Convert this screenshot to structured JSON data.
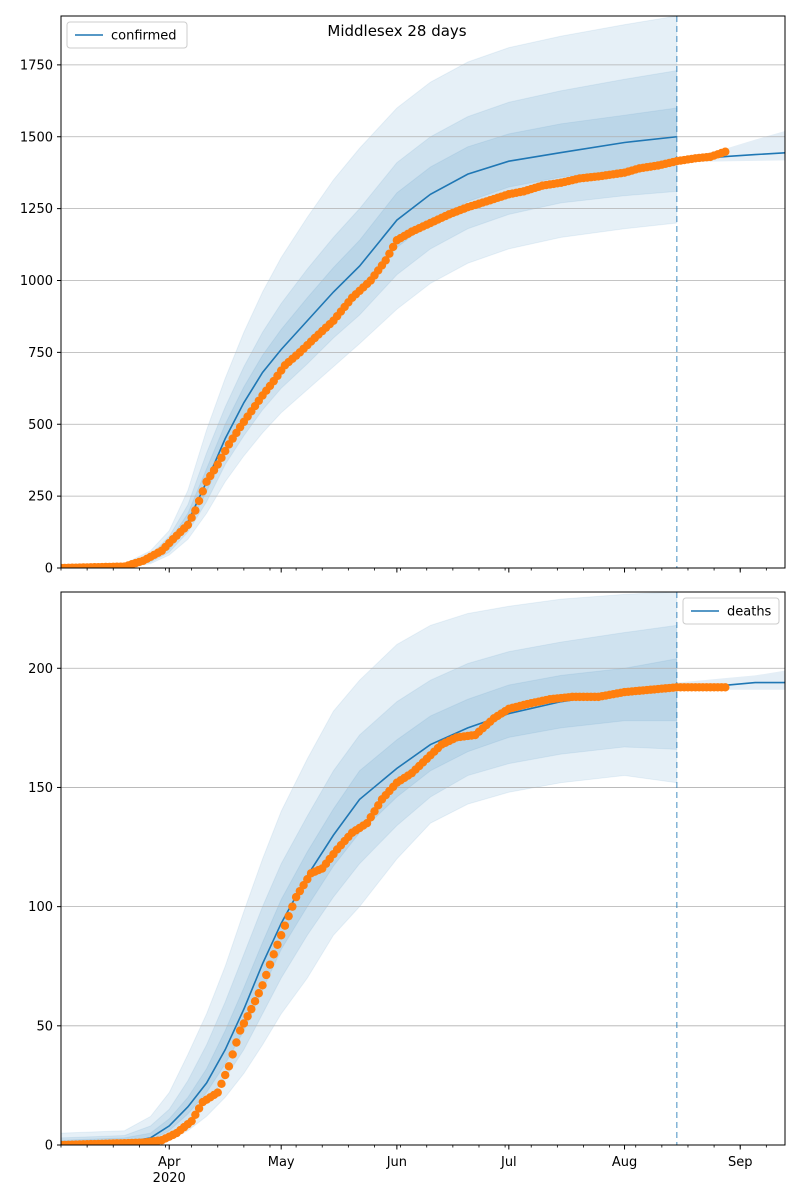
{
  "figure": {
    "title": "Middlesex 28 days"
  },
  "chart_data": [
    {
      "type": "line",
      "legend": "confirmed",
      "legend_position": "top-left",
      "ylim": [
        0,
        1920
      ],
      "yticks": [
        0,
        250,
        500,
        750,
        1000,
        1250,
        1500,
        1750
      ],
      "grid": "horizontal",
      "x_start": "2020-03-03",
      "x_end": "2020-09-13",
      "forecast_start": "2020-08-15",
      "x_major_ticks": [
        {
          "date": "2020-04-01",
          "label": "Apr",
          "sublabel": "2020"
        },
        {
          "date": "2020-05-01",
          "label": "May",
          "sublabel": ""
        },
        {
          "date": "2020-06-01",
          "label": "Jun",
          "sublabel": ""
        },
        {
          "date": "2020-07-01",
          "label": "Jul",
          "sublabel": ""
        },
        {
          "date": "2020-08-01",
          "label": "Aug",
          "sublabel": ""
        },
        {
          "date": "2020-09-01",
          "label": "Sep",
          "sublabel": ""
        }
      ],
      "model": {
        "dates": [
          "2020-03-03",
          "2020-03-20",
          "2020-03-27",
          "2020-04-01",
          "2020-04-06",
          "2020-04-11",
          "2020-04-16",
          "2020-04-21",
          "2020-04-26",
          "2020-05-01",
          "2020-05-08",
          "2020-05-15",
          "2020-05-22",
          "2020-06-01",
          "2020-06-10",
          "2020-06-20",
          "2020-07-01",
          "2020-07-15",
          "2020-08-01",
          "2020-08-15"
        ],
        "values": [
          0,
          5,
          30,
          75,
          160,
          300,
          450,
          575,
          680,
          760,
          860,
          960,
          1050,
          1210,
          1300,
          1370,
          1415,
          1445,
          1480,
          1500
        ],
        "bands": [
          {
            "lower": [
              0,
              0,
              15,
              45,
              100,
              190,
              300,
              390,
              470,
              540,
              620,
              700,
              780,
              900,
              990,
              1060,
              1110,
              1150,
              1180,
              1200
            ],
            "upper": [
              5,
              15,
              60,
              130,
              270,
              480,
              660,
              820,
              960,
              1080,
              1220,
              1350,
              1460,
              1600,
              1690,
              1760,
              1810,
              1850,
              1890,
              1920
            ]
          },
          {
            "lower": [
              0,
              2,
              20,
              55,
              125,
              230,
              360,
              460,
              550,
              625,
              710,
              800,
              880,
              1020,
              1110,
              1180,
              1230,
              1270,
              1295,
              1310
            ],
            "upper": [
              3,
              10,
              45,
              110,
              220,
              400,
              560,
              700,
              820,
              920,
              1040,
              1150,
              1250,
              1410,
              1500,
              1570,
              1620,
              1660,
              1700,
              1730
            ]
          },
          {
            "lower": [
              0,
              3,
              25,
              65,
              140,
              265,
              405,
              515,
              610,
              690,
              780,
              875,
              960,
              1115,
              1205,
              1275,
              1325,
              1360,
              1385,
              1400
            ],
            "upper": [
              2,
              8,
              38,
              92,
              190,
              345,
              500,
              630,
              740,
              830,
              940,
              1045,
              1140,
              1305,
              1395,
              1465,
              1510,
              1545,
              1575,
              1600
            ]
          }
        ]
      },
      "tail": {
        "dates": [
          "2020-08-15",
          "2020-08-22",
          "2020-08-29",
          "2020-09-05",
          "2020-09-13"
        ],
        "values": [
          1420,
          1425,
          1432,
          1438,
          1444
        ],
        "lower": [
          1412,
          1413,
          1415,
          1416,
          1418
        ],
        "upper": [
          1428,
          1440,
          1462,
          1490,
          1520
        ]
      },
      "observed": {
        "dates": [
          "2020-03-03",
          "2020-03-20",
          "2020-03-25",
          "2020-03-30",
          "2020-04-02",
          "2020-04-06",
          "2020-04-08",
          "2020-04-11",
          "2020-04-14",
          "2020-04-17",
          "2020-04-20",
          "2020-04-23",
          "2020-04-26",
          "2020-04-29",
          "2020-05-02",
          "2020-05-06",
          "2020-05-10",
          "2020-05-15",
          "2020-05-20",
          "2020-05-25",
          "2020-05-29",
          "2020-06-01",
          "2020-06-05",
          "2020-06-10",
          "2020-06-15",
          "2020-06-20",
          "2020-06-25",
          "2020-07-01",
          "2020-07-05",
          "2020-07-10",
          "2020-07-15",
          "2020-07-20",
          "2020-07-25",
          "2020-08-01",
          "2020-08-05",
          "2020-08-10",
          "2020-08-15",
          "2020-08-20",
          "2020-08-24",
          "2020-08-28"
        ],
        "values": [
          0,
          5,
          25,
          60,
          100,
          150,
          200,
          300,
          360,
          430,
          490,
          545,
          600,
          650,
          705,
          750,
          800,
          860,
          940,
          1000,
          1070,
          1140,
          1170,
          1200,
          1230,
          1255,
          1275,
          1300,
          1310,
          1330,
          1340,
          1355,
          1362,
          1375,
          1390,
          1400,
          1415,
          1425,
          1430,
          1448
        ]
      }
    },
    {
      "type": "line",
      "legend": "deaths",
      "legend_position": "top-right",
      "ylim": [
        0,
        232
      ],
      "yticks": [
        0,
        50,
        100,
        150,
        200
      ],
      "grid": "horizontal",
      "x_start": "2020-03-03",
      "x_end": "2020-09-13",
      "forecast_start": "2020-08-15",
      "x_major_ticks": [
        {
          "date": "2020-04-01",
          "label": "Apr",
          "sublabel": "2020"
        },
        {
          "date": "2020-05-01",
          "label": "May",
          "sublabel": ""
        },
        {
          "date": "2020-06-01",
          "label": "Jun",
          "sublabel": ""
        },
        {
          "date": "2020-07-01",
          "label": "Jul",
          "sublabel": ""
        },
        {
          "date": "2020-08-01",
          "label": "Aug",
          "sublabel": ""
        },
        {
          "date": "2020-09-01",
          "label": "Sep",
          "sublabel": ""
        }
      ],
      "model": {
        "dates": [
          "2020-03-03",
          "2020-03-20",
          "2020-03-27",
          "2020-04-01",
          "2020-04-06",
          "2020-04-11",
          "2020-04-16",
          "2020-04-21",
          "2020-04-26",
          "2020-05-01",
          "2020-05-08",
          "2020-05-15",
          "2020-05-22",
          "2020-06-01",
          "2020-06-10",
          "2020-06-20",
          "2020-07-01",
          "2020-07-15",
          "2020-08-01",
          "2020-08-15"
        ],
        "values": [
          0,
          1,
          3,
          8,
          16,
          26,
          40,
          57,
          76,
          93,
          113,
          130,
          145,
          158,
          168,
          175,
          181,
          186,
          190,
          192
        ],
        "bands": [
          {
            "lower": [
              0,
              0,
              0,
              2,
              6,
              12,
              20,
              30,
              42,
              55,
              70,
              88,
              100,
              120,
              135,
              143,
              148,
              152,
              155,
              152
            ],
            "upper": [
              5,
              6,
              12,
              22,
              38,
              55,
              75,
              98,
              120,
              140,
              162,
              182,
              195,
              210,
              218,
              223,
              226,
              229,
              231,
              232
            ]
          },
          {
            "lower": [
              0,
              0,
              1,
              4,
              10,
              18,
              28,
              40,
              55,
              70,
              88,
              104,
              118,
              134,
              146,
              155,
              160,
              164,
              167,
              166
            ],
            "upper": [
              3,
              4,
              8,
              15,
              27,
              42,
              60,
              80,
              100,
              118,
              138,
              157,
              172,
              186,
              195,
              202,
              207,
              211,
              215,
              218
            ]
          },
          {
            "lower": [
              0,
              0,
              2,
              6,
              13,
              22,
              34,
              48,
              65,
              82,
              100,
              117,
              131,
              146,
              157,
              165,
              171,
              175,
              178,
              178
            ],
            "upper": [
              2,
              3,
              5,
              11,
              20,
              32,
              48,
              66,
              85,
              103,
              123,
              141,
              157,
              170,
              180,
              187,
              193,
              197,
              200,
              204
            ]
          }
        ]
      },
      "tail": {
        "dates": [
          "2020-08-15",
          "2020-08-22",
          "2020-08-29",
          "2020-09-05",
          "2020-09-13"
        ],
        "values": [
          192,
          192,
          193,
          194,
          194
        ],
        "lower": [
          191,
          191,
          191,
          191,
          191
        ],
        "upper": [
          194,
          195,
          196,
          197,
          199
        ]
      },
      "observed": {
        "dates": [
          "2020-03-03",
          "2020-03-25",
          "2020-03-30",
          "2020-04-03",
          "2020-04-07",
          "2020-04-10",
          "2020-04-14",
          "2020-04-17",
          "2020-04-20",
          "2020-04-23",
          "2020-04-26",
          "2020-04-29",
          "2020-05-02",
          "2020-05-05",
          "2020-05-09",
          "2020-05-12",
          "2020-05-16",
          "2020-05-20",
          "2020-05-24",
          "2020-05-28",
          "2020-06-01",
          "2020-06-05",
          "2020-06-09",
          "2020-06-13",
          "2020-06-17",
          "2020-06-22",
          "2020-06-27",
          "2020-07-01",
          "2020-07-06",
          "2020-07-12",
          "2020-07-18",
          "2020-07-25",
          "2020-08-01",
          "2020-08-08",
          "2020-08-15",
          "2020-08-22",
          "2020-08-28"
        ],
        "values": [
          0,
          1,
          2,
          5,
          10,
          18,
          22,
          33,
          48,
          57,
          67,
          80,
          92,
          104,
          114,
          116,
          124,
          131,
          135,
          145,
          152,
          156,
          162,
          168,
          171,
          172,
          179,
          183,
          185,
          187,
          188,
          188,
          190,
          191,
          192,
          192,
          192
        ]
      }
    }
  ],
  "colors": {
    "line": "#1f77b4",
    "observed": "#ff7f0e",
    "band": "#1f77b4",
    "grid": "#b0b0b0",
    "forecast_marker": "#1f77b4"
  }
}
